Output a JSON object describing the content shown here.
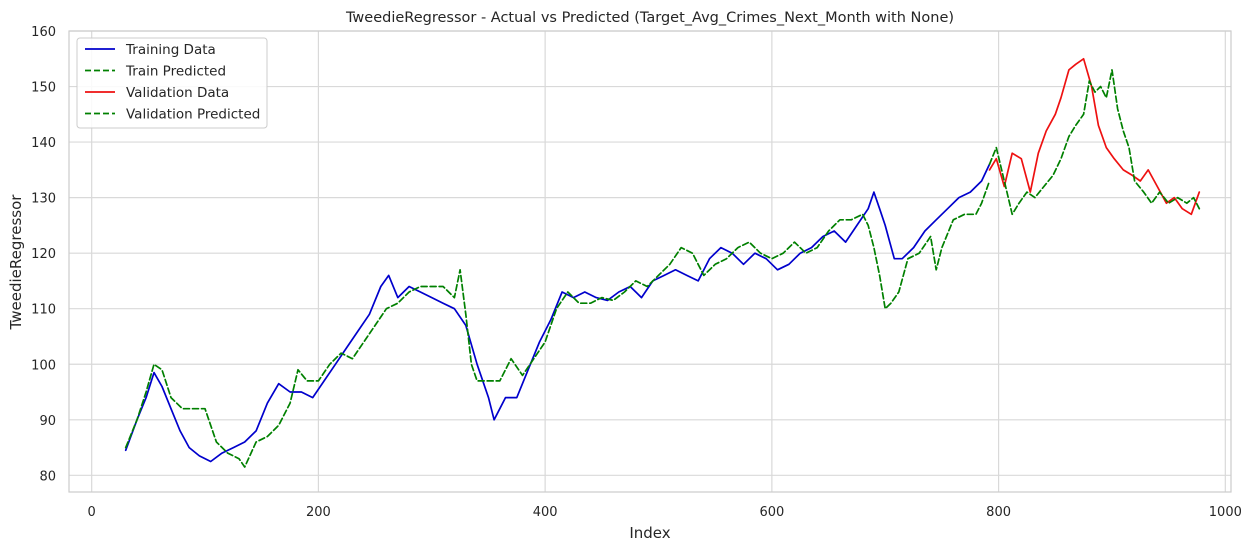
{
  "chart_data": {
    "type": "line",
    "title": "TweedieRegressor - Actual vs Predicted (Target_Avg_Crimes_Next_Month with None)",
    "xlabel": "Index",
    "ylabel": "TweedieRegressor",
    "xlim": [
      -20,
      1005
    ],
    "ylim": [
      77,
      160
    ],
    "xticks": [
      0,
      200,
      400,
      600,
      800,
      1000
    ],
    "yticks": [
      80,
      90,
      100,
      110,
      120,
      130,
      140,
      150,
      160
    ],
    "grid": true,
    "legend_position": "top-left",
    "series": [
      {
        "name": "Training Data",
        "color": "#0000cc",
        "dash": "solid",
        "points": [
          [
            30,
            84.5
          ],
          [
            40,
            90
          ],
          [
            48,
            94
          ],
          [
            55,
            98.5
          ],
          [
            62,
            96
          ],
          [
            70,
            92
          ],
          [
            78,
            88
          ],
          [
            86,
            85
          ],
          [
            95,
            83.5
          ],
          [
            105,
            82.5
          ],
          [
            115,
            84
          ],
          [
            125,
            85
          ],
          [
            135,
            86
          ],
          [
            145,
            88
          ],
          [
            155,
            93
          ],
          [
            165,
            96.5
          ],
          [
            175,
            95
          ],
          [
            185,
            95
          ],
          [
            195,
            94
          ],
          [
            205,
            97
          ],
          [
            215,
            100
          ],
          [
            225,
            103
          ],
          [
            235,
            106
          ],
          [
            245,
            109
          ],
          [
            255,
            114
          ],
          [
            262,
            116
          ],
          [
            270,
            112
          ],
          [
            280,
            114
          ],
          [
            290,
            113
          ],
          [
            300,
            112
          ],
          [
            310,
            111
          ],
          [
            320,
            110
          ],
          [
            330,
            107
          ],
          [
            340,
            100
          ],
          [
            350,
            94
          ],
          [
            355,
            90
          ],
          [
            365,
            94
          ],
          [
            375,
            94
          ],
          [
            385,
            99
          ],
          [
            395,
            104
          ],
          [
            405,
            108
          ],
          [
            415,
            113
          ],
          [
            425,
            112
          ],
          [
            435,
            113
          ],
          [
            445,
            112
          ],
          [
            455,
            111.5
          ],
          [
            465,
            113
          ],
          [
            475,
            114
          ],
          [
            485,
            112
          ],
          [
            495,
            115
          ],
          [
            505,
            116
          ],
          [
            515,
            117
          ],
          [
            525,
            116
          ],
          [
            535,
            115
          ],
          [
            545,
            119
          ],
          [
            555,
            121
          ],
          [
            565,
            120
          ],
          [
            575,
            118
          ],
          [
            585,
            120
          ],
          [
            595,
            119
          ],
          [
            605,
            117
          ],
          [
            615,
            118
          ],
          [
            625,
            120
          ],
          [
            635,
            121
          ],
          [
            645,
            123
          ],
          [
            655,
            124
          ],
          [
            665,
            122
          ],
          [
            675,
            125
          ],
          [
            685,
            128
          ],
          [
            690,
            131
          ],
          [
            695,
            128
          ],
          [
            700,
            125
          ],
          [
            708,
            119
          ],
          [
            715,
            119
          ],
          [
            725,
            121
          ],
          [
            735,
            124
          ],
          [
            745,
            126
          ],
          [
            755,
            128
          ],
          [
            765,
            130
          ],
          [
            775,
            131
          ],
          [
            785,
            133
          ],
          [
            792,
            136
          ]
        ]
      },
      {
        "name": "Train Predicted",
        "color": "#008000",
        "dash": "dashed",
        "points": [
          [
            30,
            85
          ],
          [
            40,
            90
          ],
          [
            48,
            95
          ],
          [
            55,
            100
          ],
          [
            62,
            99
          ],
          [
            70,
            94
          ],
          [
            80,
            92
          ],
          [
            90,
            92
          ],
          [
            100,
            92
          ],
          [
            110,
            86
          ],
          [
            120,
            84
          ],
          [
            130,
            83
          ],
          [
            135,
            81.5
          ],
          [
            145,
            86
          ],
          [
            155,
            87
          ],
          [
            165,
            89
          ],
          [
            175,
            93
          ],
          [
            182,
            99
          ],
          [
            190,
            97
          ],
          [
            200,
            97
          ],
          [
            210,
            100
          ],
          [
            220,
            102
          ],
          [
            230,
            101
          ],
          [
            240,
            104
          ],
          [
            250,
            107
          ],
          [
            260,
            110
          ],
          [
            270,
            111
          ],
          [
            280,
            113
          ],
          [
            290,
            114
          ],
          [
            300,
            114
          ],
          [
            310,
            114
          ],
          [
            320,
            112
          ],
          [
            325,
            117
          ],
          [
            330,
            109
          ],
          [
            335,
            100
          ],
          [
            340,
            97
          ],
          [
            350,
            97
          ],
          [
            360,
            97
          ],
          [
            370,
            101
          ],
          [
            380,
            98
          ],
          [
            390,
            101
          ],
          [
            400,
            104
          ],
          [
            410,
            110
          ],
          [
            420,
            113
          ],
          [
            430,
            111
          ],
          [
            440,
            111
          ],
          [
            450,
            112
          ],
          [
            460,
            111.5
          ],
          [
            470,
            113
          ],
          [
            480,
            115
          ],
          [
            490,
            114
          ],
          [
            500,
            116
          ],
          [
            510,
            118
          ],
          [
            520,
            121
          ],
          [
            530,
            120
          ],
          [
            540,
            116
          ],
          [
            550,
            118
          ],
          [
            560,
            119
          ],
          [
            570,
            121
          ],
          [
            580,
            122
          ],
          [
            590,
            120
          ],
          [
            600,
            119
          ],
          [
            610,
            120
          ],
          [
            620,
            122
          ],
          [
            630,
            120
          ],
          [
            640,
            121
          ],
          [
            650,
            124
          ],
          [
            660,
            126
          ],
          [
            670,
            126
          ],
          [
            680,
            127
          ],
          [
            685,
            125
          ],
          [
            690,
            121
          ],
          [
            695,
            116
          ],
          [
            700,
            110
          ],
          [
            705,
            111
          ],
          [
            712,
            113
          ],
          [
            720,
            119
          ],
          [
            730,
            120
          ],
          [
            740,
            123
          ],
          [
            745,
            117
          ],
          [
            750,
            121
          ],
          [
            760,
            126
          ],
          [
            770,
            127
          ],
          [
            780,
            127
          ],
          [
            785,
            129
          ],
          [
            792,
            133
          ]
        ]
      },
      {
        "name": "Validation Data",
        "color": "#ee1111",
        "dash": "solid",
        "points": [
          [
            792,
            135
          ],
          [
            798,
            137
          ],
          [
            805,
            132
          ],
          [
            812,
            138
          ],
          [
            820,
            137
          ],
          [
            828,
            131
          ],
          [
            835,
            138
          ],
          [
            842,
            142
          ],
          [
            850,
            145
          ],
          [
            855,
            148
          ],
          [
            862,
            153
          ],
          [
            868,
            154
          ],
          [
            875,
            155
          ],
          [
            882,
            150
          ],
          [
            888,
            143
          ],
          [
            895,
            139
          ],
          [
            902,
            137
          ],
          [
            910,
            135
          ],
          [
            918,
            134
          ],
          [
            925,
            133
          ],
          [
            932,
            135
          ],
          [
            940,
            132
          ],
          [
            948,
            129
          ],
          [
            955,
            130
          ],
          [
            962,
            128
          ],
          [
            970,
            127
          ],
          [
            977,
            131
          ]
        ]
      },
      {
        "name": "Validation Predicted",
        "color": "#008000",
        "dash": "dashed",
        "points": [
          [
            792,
            136
          ],
          [
            798,
            139
          ],
          [
            805,
            133
          ],
          [
            812,
            127
          ],
          [
            818,
            129
          ],
          [
            825,
            131
          ],
          [
            832,
            130
          ],
          [
            840,
            132
          ],
          [
            848,
            134
          ],
          [
            855,
            137
          ],
          [
            862,
            141
          ],
          [
            868,
            143
          ],
          [
            875,
            145
          ],
          [
            880,
            151
          ],
          [
            885,
            149
          ],
          [
            890,
            150
          ],
          [
            895,
            148
          ],
          [
            900,
            153
          ],
          [
            905,
            146
          ],
          [
            910,
            142
          ],
          [
            915,
            139
          ],
          [
            920,
            133
          ],
          [
            928,
            131
          ],
          [
            935,
            129
          ],
          [
            942,
            131
          ],
          [
            950,
            129
          ],
          [
            958,
            130
          ],
          [
            966,
            129
          ],
          [
            972,
            130
          ],
          [
            977,
            128
          ]
        ]
      }
    ]
  }
}
